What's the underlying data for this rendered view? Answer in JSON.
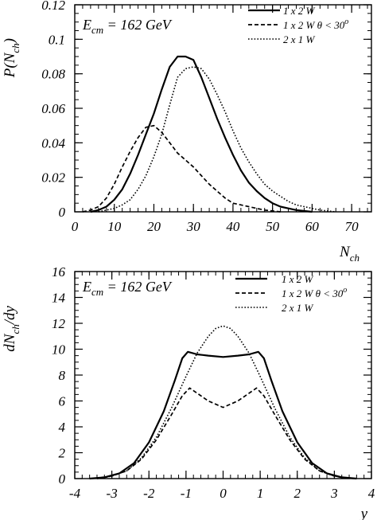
{
  "chart_data": [
    {
      "type": "line",
      "title": "",
      "annotation": "E_cm = 162 GeV",
      "annotation_parts": {
        "E": "E",
        "sub": "cm",
        "rest": " = 162 GeV"
      },
      "xlabel": "N_ch",
      "xlabel_parts": {
        "main": "N",
        "sub": "ch"
      },
      "ylabel": "P(N_ch)",
      "ylabel_parts": {
        "pre": "P(N",
        "sub": "ch",
        "post": ")"
      },
      "xlim": [
        0,
        75
      ],
      "ylim": [
        0,
        0.12
      ],
      "xticks": [
        0,
        10,
        20,
        30,
        40,
        50,
        60,
        70
      ],
      "xtick_labels": [
        "0",
        "10",
        "20",
        "30",
        "40",
        "50",
        "60",
        "70"
      ],
      "yticks": [
        0,
        0.02,
        0.04,
        0.06,
        0.08,
        0.1,
        0.12
      ],
      "ytick_labels": [
        "0",
        "0.02",
        "0.04",
        "0.06",
        "0.08",
        "0.1",
        "0.12"
      ],
      "legend_position": "top-right",
      "series": [
        {
          "name": "1 x 2 W",
          "style": "solid",
          "points": [
            [
              4,
              0.0
            ],
            [
              6,
              0.001
            ],
            [
              8,
              0.003
            ],
            [
              10,
              0.007
            ],
            [
              12,
              0.013
            ],
            [
              14,
              0.022
            ],
            [
              16,
              0.033
            ],
            [
              18,
              0.045
            ],
            [
              20,
              0.057
            ],
            [
              22,
              0.071
            ],
            [
              24,
              0.084
            ],
            [
              26,
              0.09
            ],
            [
              28,
              0.09
            ],
            [
              30,
              0.088
            ],
            [
              32,
              0.078
            ],
            [
              34,
              0.066
            ],
            [
              36,
              0.054
            ],
            [
              38,
              0.043
            ],
            [
              40,
              0.033
            ],
            [
              42,
              0.024
            ],
            [
              44,
              0.017
            ],
            [
              46,
              0.012
            ],
            [
              48,
              0.008
            ],
            [
              50,
              0.005
            ],
            [
              52,
              0.003
            ],
            [
              54,
              0.002
            ],
            [
              56,
              0.001
            ],
            [
              60,
              0.0
            ]
          ]
        },
        {
          "name": "1 x 2 W  θ < 30°",
          "name_parts": {
            "base": "1 x 2 W  θ < 30",
            "sup": "o"
          },
          "style": "dashed",
          "points": [
            [
              2,
              0.0
            ],
            [
              4,
              0.001
            ],
            [
              6,
              0.003
            ],
            [
              8,
              0.008
            ],
            [
              10,
              0.016
            ],
            [
              12,
              0.026
            ],
            [
              14,
              0.035
            ],
            [
              16,
              0.043
            ],
            [
              18,
              0.049
            ],
            [
              20,
              0.05
            ],
            [
              22,
              0.046
            ],
            [
              24,
              0.04
            ],
            [
              26,
              0.034
            ],
            [
              28,
              0.03
            ],
            [
              30,
              0.026
            ],
            [
              32,
              0.021
            ],
            [
              34,
              0.016
            ],
            [
              36,
              0.012
            ],
            [
              38,
              0.008
            ],
            [
              40,
              0.005
            ],
            [
              42,
              0.004
            ],
            [
              44,
              0.003
            ],
            [
              46,
              0.002
            ],
            [
              48,
              0.001
            ],
            [
              52,
              0.0
            ]
          ]
        },
        {
          "name": "2 x 1 W",
          "style": "dotted",
          "points": [
            [
              6,
              0.0
            ],
            [
              8,
              0.001
            ],
            [
              10,
              0.002
            ],
            [
              12,
              0.004
            ],
            [
              14,
              0.007
            ],
            [
              16,
              0.013
            ],
            [
              18,
              0.021
            ],
            [
              20,
              0.032
            ],
            [
              22,
              0.045
            ],
            [
              24,
              0.062
            ],
            [
              26,
              0.078
            ],
            [
              28,
              0.083
            ],
            [
              30,
              0.084
            ],
            [
              32,
              0.083
            ],
            [
              34,
              0.077
            ],
            [
              36,
              0.068
            ],
            [
              38,
              0.058
            ],
            [
              40,
              0.047
            ],
            [
              42,
              0.037
            ],
            [
              44,
              0.029
            ],
            [
              46,
              0.022
            ],
            [
              48,
              0.016
            ],
            [
              50,
              0.012
            ],
            [
              52,
              0.009
            ],
            [
              54,
              0.006
            ],
            [
              56,
              0.004
            ],
            [
              58,
              0.003
            ],
            [
              60,
              0.002
            ],
            [
              62,
              0.001
            ],
            [
              66,
              0.0
            ]
          ]
        }
      ]
    },
    {
      "type": "line",
      "title": "",
      "annotation": "E_cm = 162 GeV",
      "annotation_parts": {
        "E": "E",
        "sub": "cm",
        "rest": " = 162 GeV"
      },
      "xlabel": "y",
      "xlabel_parts": {
        "main": "y",
        "sub": ""
      },
      "ylabel": "dN_ch/dy",
      "ylabel_parts": {
        "pre": "dN",
        "sub": "ch",
        "post": "/dy"
      },
      "xlim": [
        -4,
        4
      ],
      "ylim": [
        0,
        16
      ],
      "xticks": [
        -4,
        -3,
        -2,
        -1,
        0,
        1,
        2,
        3,
        4
      ],
      "xtick_labels": [
        "-4",
        "-3",
        "-2",
        "-1",
        "0",
        "1",
        "2",
        "3",
        "4"
      ],
      "yticks": [
        0,
        2,
        4,
        6,
        8,
        10,
        12,
        14,
        16
      ],
      "ytick_labels": [
        "0",
        "2",
        "4",
        "6",
        "8",
        "10",
        "12",
        "14",
        "16"
      ],
      "legend_position": "top-right",
      "series": [
        {
          "name": "1 x 2 W",
          "style": "solid",
          "points": [
            [
              -3.6,
              0.0
            ],
            [
              -3.2,
              0.1
            ],
            [
              -2.8,
              0.4
            ],
            [
              -2.4,
              1.2
            ],
            [
              -2.0,
              2.8
            ],
            [
              -1.6,
              5.2
            ],
            [
              -1.3,
              7.6
            ],
            [
              -1.1,
              9.3
            ],
            [
              -0.95,
              9.8
            ],
            [
              -0.7,
              9.6
            ],
            [
              -0.4,
              9.5
            ],
            [
              0.0,
              9.4
            ],
            [
              0.4,
              9.5
            ],
            [
              0.7,
              9.6
            ],
            [
              0.95,
              9.8
            ],
            [
              1.1,
              9.3
            ],
            [
              1.3,
              7.6
            ],
            [
              1.6,
              5.2
            ],
            [
              2.0,
              2.8
            ],
            [
              2.4,
              1.2
            ],
            [
              2.8,
              0.4
            ],
            [
              3.2,
              0.1
            ],
            [
              3.6,
              0.0
            ]
          ]
        },
        {
          "name": "1 x 2 W  θ < 30°",
          "name_parts": {
            "base": "1 x 2 W  θ < 30",
            "sup": "o"
          },
          "style": "dashed",
          "points": [
            [
              -3.4,
              0.0
            ],
            [
              -3.0,
              0.2
            ],
            [
              -2.6,
              0.6
            ],
            [
              -2.2,
              1.5
            ],
            [
              -1.8,
              3.0
            ],
            [
              -1.4,
              4.9
            ],
            [
              -1.1,
              6.4
            ],
            [
              -0.9,
              7.0
            ],
            [
              -0.7,
              6.6
            ],
            [
              -0.4,
              6.0
            ],
            [
              0.0,
              5.5
            ],
            [
              0.4,
              6.0
            ],
            [
              0.7,
              6.6
            ],
            [
              0.9,
              7.0
            ],
            [
              1.1,
              6.4
            ],
            [
              1.4,
              4.9
            ],
            [
              1.8,
              3.0
            ],
            [
              2.2,
              1.5
            ],
            [
              2.6,
              0.6
            ],
            [
              3.0,
              0.2
            ],
            [
              3.4,
              0.0
            ]
          ]
        },
        {
          "name": "2 x 1 W",
          "style": "dotted",
          "points": [
            [
              -3.4,
              0.0
            ],
            [
              -3.0,
              0.2
            ],
            [
              -2.6,
              0.6
            ],
            [
              -2.2,
              1.6
            ],
            [
              -1.8,
              3.2
            ],
            [
              -1.4,
              5.4
            ],
            [
              -1.0,
              7.9
            ],
            [
              -0.7,
              9.7
            ],
            [
              -0.4,
              11.0
            ],
            [
              -0.2,
              11.6
            ],
            [
              0.0,
              11.8
            ],
            [
              0.2,
              11.6
            ],
            [
              0.4,
              11.0
            ],
            [
              0.7,
              9.7
            ],
            [
              1.0,
              7.9
            ],
            [
              1.4,
              5.4
            ],
            [
              1.8,
              3.2
            ],
            [
              2.2,
              1.6
            ],
            [
              2.6,
              0.6
            ],
            [
              3.0,
              0.2
            ],
            [
              3.4,
              0.0
            ]
          ]
        }
      ]
    }
  ]
}
